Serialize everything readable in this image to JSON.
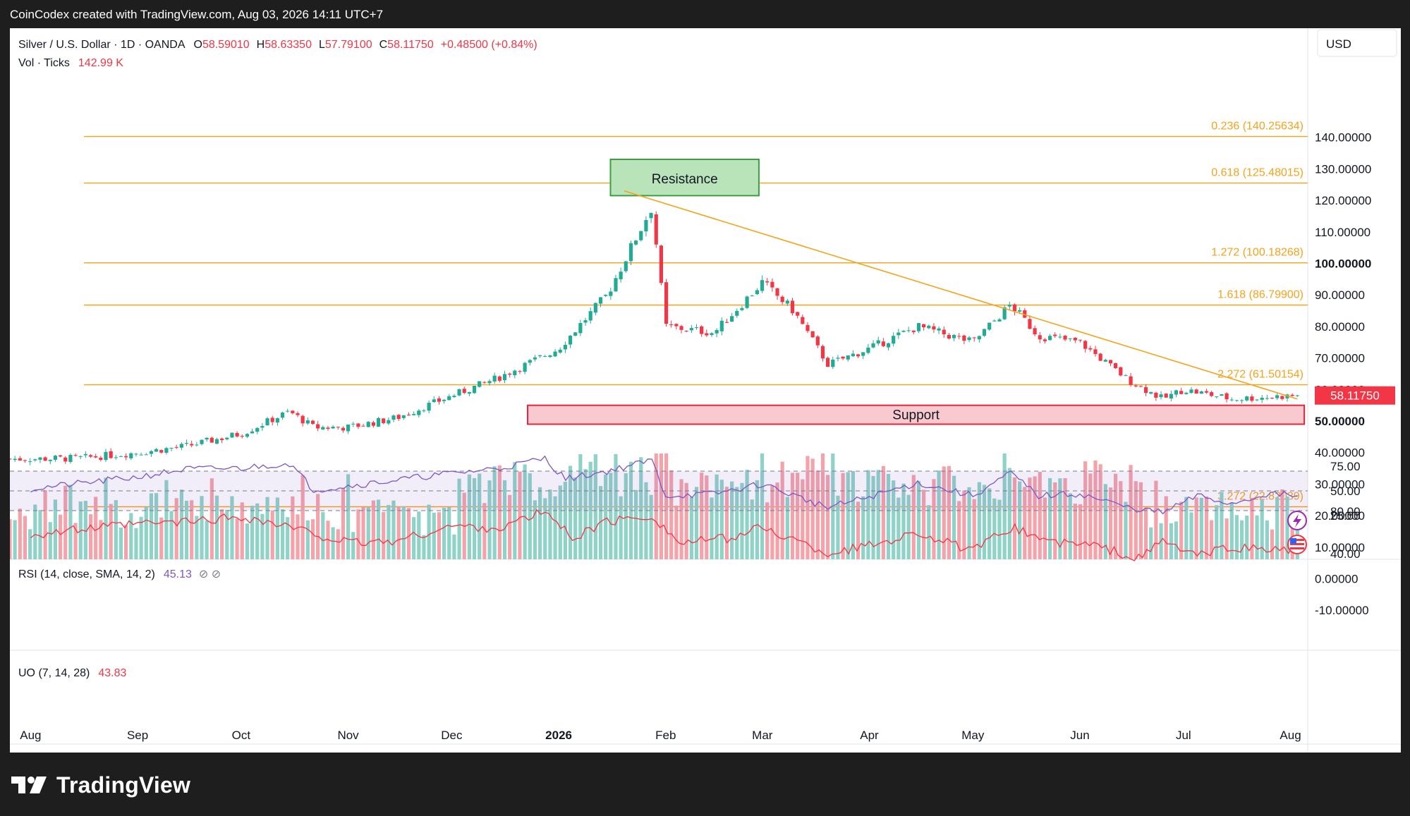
{
  "window": {
    "created_by": "CoinCodex created with TradingView.com, Aug 03, 2026 14:11 UTC+7"
  },
  "colors": {
    "up": "#22ab94",
    "down": "#f23645",
    "vol_up": "#8fd3c8",
    "vol_down": "#f5a3aa",
    "fib": "#f7a21b",
    "rsi": "#7e57c2",
    "uo": "#f23645",
    "support_fill": "#f8c9cf",
    "support_border": "#e5243b",
    "resistance_fill": "#b9e3b9",
    "resistance_border": "#3aa041"
  },
  "header": {
    "symbol": "Silver / U.S. Dollar · 1D · OANDA",
    "open_label": "O",
    "open": "58.59010",
    "high_label": "H",
    "high": "58.63350",
    "low_label": "L",
    "low": "57.79100",
    "close_label": "C",
    "close": "58.11750",
    "change": "+0.48500 (+0.84%)",
    "vol_label": "Vol · Ticks",
    "vol_value": "142.99 K"
  },
  "currency_button": "USD",
  "annotations": {
    "resistance": "Resistance",
    "support": "Support"
  },
  "last_price_tag": "58.11750",
  "chart_data": {
    "type": "candlestick",
    "title": "Silver / U.S. Dollar · 1D · OANDA",
    "y_axis": {
      "range": [
        -10,
        160
      ],
      "ticks": [
        "140.00000",
        "130.00000",
        "120.00000",
        "110.00000",
        "100.00000",
        "90.00000",
        "80.00000",
        "70.00000",
        "60.00000",
        "50.00000",
        "40.00000",
        "30.00000",
        "20.00000",
        "10.00000",
        "0.00000",
        "-10.00000"
      ]
    },
    "x_axis": {
      "ticks": [
        "Aug",
        "Sep",
        "Oct",
        "Nov",
        "Dec",
        "2026",
        "Feb",
        "Mar",
        "Apr",
        "May",
        "Jun",
        "Jul",
        "Aug"
      ]
    },
    "price_path": [
      {
        "date": "2025-08-01",
        "close": 38
      },
      {
        "date": "2025-08-15",
        "close": 38.2
      },
      {
        "date": "2025-09-01",
        "close": 40
      },
      {
        "date": "2025-09-15",
        "close": 42
      },
      {
        "date": "2025-10-01",
        "close": 46
      },
      {
        "date": "2025-10-15",
        "close": 53
      },
      {
        "date": "2025-10-22",
        "close": 48
      },
      {
        "date": "2025-11-01",
        "close": 48
      },
      {
        "date": "2025-11-15",
        "close": 51
      },
      {
        "date": "2025-12-01",
        "close": 58
      },
      {
        "date": "2025-12-15",
        "close": 64
      },
      {
        "date": "2026-01-01",
        "close": 73
      },
      {
        "date": "2026-01-15",
        "close": 90
      },
      {
        "date": "2026-01-28",
        "close": 118
      },
      {
        "date": "2026-02-01",
        "close": 80
      },
      {
        "date": "2026-02-15",
        "close": 78
      },
      {
        "date": "2026-03-01",
        "close": 94
      },
      {
        "date": "2026-03-10",
        "close": 85
      },
      {
        "date": "2026-03-20",
        "close": 68
      },
      {
        "date": "2026-04-01",
        "close": 73
      },
      {
        "date": "2026-04-15",
        "close": 80
      },
      {
        "date": "2026-05-01",
        "close": 75
      },
      {
        "date": "2026-05-12",
        "close": 87
      },
      {
        "date": "2026-05-20",
        "close": 77
      },
      {
        "date": "2026-06-01",
        "close": 75
      },
      {
        "date": "2026-06-15",
        "close": 63
      },
      {
        "date": "2026-06-25",
        "close": 57
      },
      {
        "date": "2026-07-01",
        "close": 60
      },
      {
        "date": "2026-07-15",
        "close": 57
      },
      {
        "date": "2026-08-03",
        "close": 58.1175
      }
    ],
    "ohlc_last": {
      "open": 58.5901,
      "high": 58.6335,
      "low": 57.791,
      "close": 58.1175
    },
    "fib_levels": [
      {
        "label": "0.236 (140.25634)",
        "value": 140.25634
      },
      {
        "label": "0.618 (125.48015)",
        "value": 125.48015
      },
      {
        "label": "1.272 (100.18268)",
        "value": 100.18268
      },
      {
        "label": "1.618 (86.79900)",
        "value": 86.799
      },
      {
        "label": "2.272 (61.50154)",
        "value": 61.50154
      },
      {
        "label": "3.272 (22.82039)",
        "value": 22.82039
      }
    ],
    "trendline": {
      "from": {
        "date": "2026-01-20",
        "value": 123
      },
      "to": {
        "date": "2026-08-03",
        "value": 57
      }
    },
    "resistance_zone": {
      "from_date": "2026-01-16",
      "to_date": "2026-02-28",
      "low": 121.5,
      "high": 133
    },
    "support_zone": {
      "from_date": "2025-12-23",
      "to_date": "2026-08-05",
      "low": 49,
      "high": 55
    },
    "volume": {
      "label": "Vol · Ticks",
      "last": "142.99 K"
    },
    "rsi": {
      "label": "RSI (14, close, SMA, 14, 2)",
      "value": "45.13",
      "ticks": [
        "75.00",
        "50.00",
        "25.00"
      ],
      "bands": [
        70,
        50,
        30
      ],
      "range": [
        20,
        90
      ],
      "path": [
        {
          "date": "2025-08-01",
          "v": 52
        },
        {
          "date": "2025-09-01",
          "v": 64
        },
        {
          "date": "2025-09-15",
          "v": 72
        },
        {
          "date": "2025-10-01",
          "v": 73
        },
        {
          "date": "2025-10-15",
          "v": 78
        },
        {
          "date": "2025-10-22",
          "v": 51
        },
        {
          "date": "2025-11-01",
          "v": 55
        },
        {
          "date": "2025-11-15",
          "v": 61
        },
        {
          "date": "2025-12-01",
          "v": 68
        },
        {
          "date": "2025-12-15",
          "v": 73
        },
        {
          "date": "2025-12-28",
          "v": 83
        },
        {
          "date": "2026-01-03",
          "v": 62
        },
        {
          "date": "2026-01-15",
          "v": 70
        },
        {
          "date": "2026-01-28",
          "v": 81
        },
        {
          "date": "2026-02-01",
          "v": 45
        },
        {
          "date": "2026-02-15",
          "v": 47
        },
        {
          "date": "2026-03-01",
          "v": 57
        },
        {
          "date": "2026-03-20",
          "v": 33
        },
        {
          "date": "2026-04-01",
          "v": 44
        },
        {
          "date": "2026-04-15",
          "v": 58
        },
        {
          "date": "2026-05-01",
          "v": 45
        },
        {
          "date": "2026-05-12",
          "v": 68
        },
        {
          "date": "2026-05-20",
          "v": 45
        },
        {
          "date": "2026-06-01",
          "v": 47
        },
        {
          "date": "2026-06-15",
          "v": 33
        },
        {
          "date": "2026-06-25",
          "v": 28
        },
        {
          "date": "2026-07-05",
          "v": 45
        },
        {
          "date": "2026-07-15",
          "v": 37
        },
        {
          "date": "2026-07-25",
          "v": 47
        },
        {
          "date": "2026-08-03",
          "v": 45.13
        }
      ]
    },
    "uo": {
      "label": "UO (7, 14, 28)",
      "value": "43.83",
      "ticks": [
        "80.00",
        "40.00"
      ],
      "range": [
        30,
        85
      ],
      "path": [
        {
          "date": "2025-08-01",
          "v": 58
        },
        {
          "date": "2025-09-01",
          "v": 68
        },
        {
          "date": "2025-09-15",
          "v": 70
        },
        {
          "date": "2025-10-01",
          "v": 75
        },
        {
          "date": "2025-10-15",
          "v": 65
        },
        {
          "date": "2025-11-01",
          "v": 50
        },
        {
          "date": "2025-11-15",
          "v": 52
        },
        {
          "date": "2025-12-01",
          "v": 66
        },
        {
          "date": "2025-12-15",
          "v": 64
        },
        {
          "date": "2025-12-28",
          "v": 80
        },
        {
          "date": "2026-01-05",
          "v": 55
        },
        {
          "date": "2026-01-15",
          "v": 70
        },
        {
          "date": "2026-01-28",
          "v": 76
        },
        {
          "date": "2026-02-05",
          "v": 50
        },
        {
          "date": "2026-02-20",
          "v": 55
        },
        {
          "date": "2026-03-01",
          "v": 65
        },
        {
          "date": "2026-03-20",
          "v": 40
        },
        {
          "date": "2026-04-01",
          "v": 48
        },
        {
          "date": "2026-04-15",
          "v": 60
        },
        {
          "date": "2026-05-01",
          "v": 42
        },
        {
          "date": "2026-05-12",
          "v": 65
        },
        {
          "date": "2026-05-25",
          "v": 50
        },
        {
          "date": "2026-06-05",
          "v": 48
        },
        {
          "date": "2026-06-18",
          "v": 35
        },
        {
          "date": "2026-06-25",
          "v": 52
        },
        {
          "date": "2026-07-05",
          "v": 38
        },
        {
          "date": "2026-07-15",
          "v": 46
        },
        {
          "date": "2026-07-25",
          "v": 44
        },
        {
          "date": "2026-08-03",
          "v": 43.83
        }
      ]
    }
  },
  "footer": {
    "brand": "TradingView"
  }
}
